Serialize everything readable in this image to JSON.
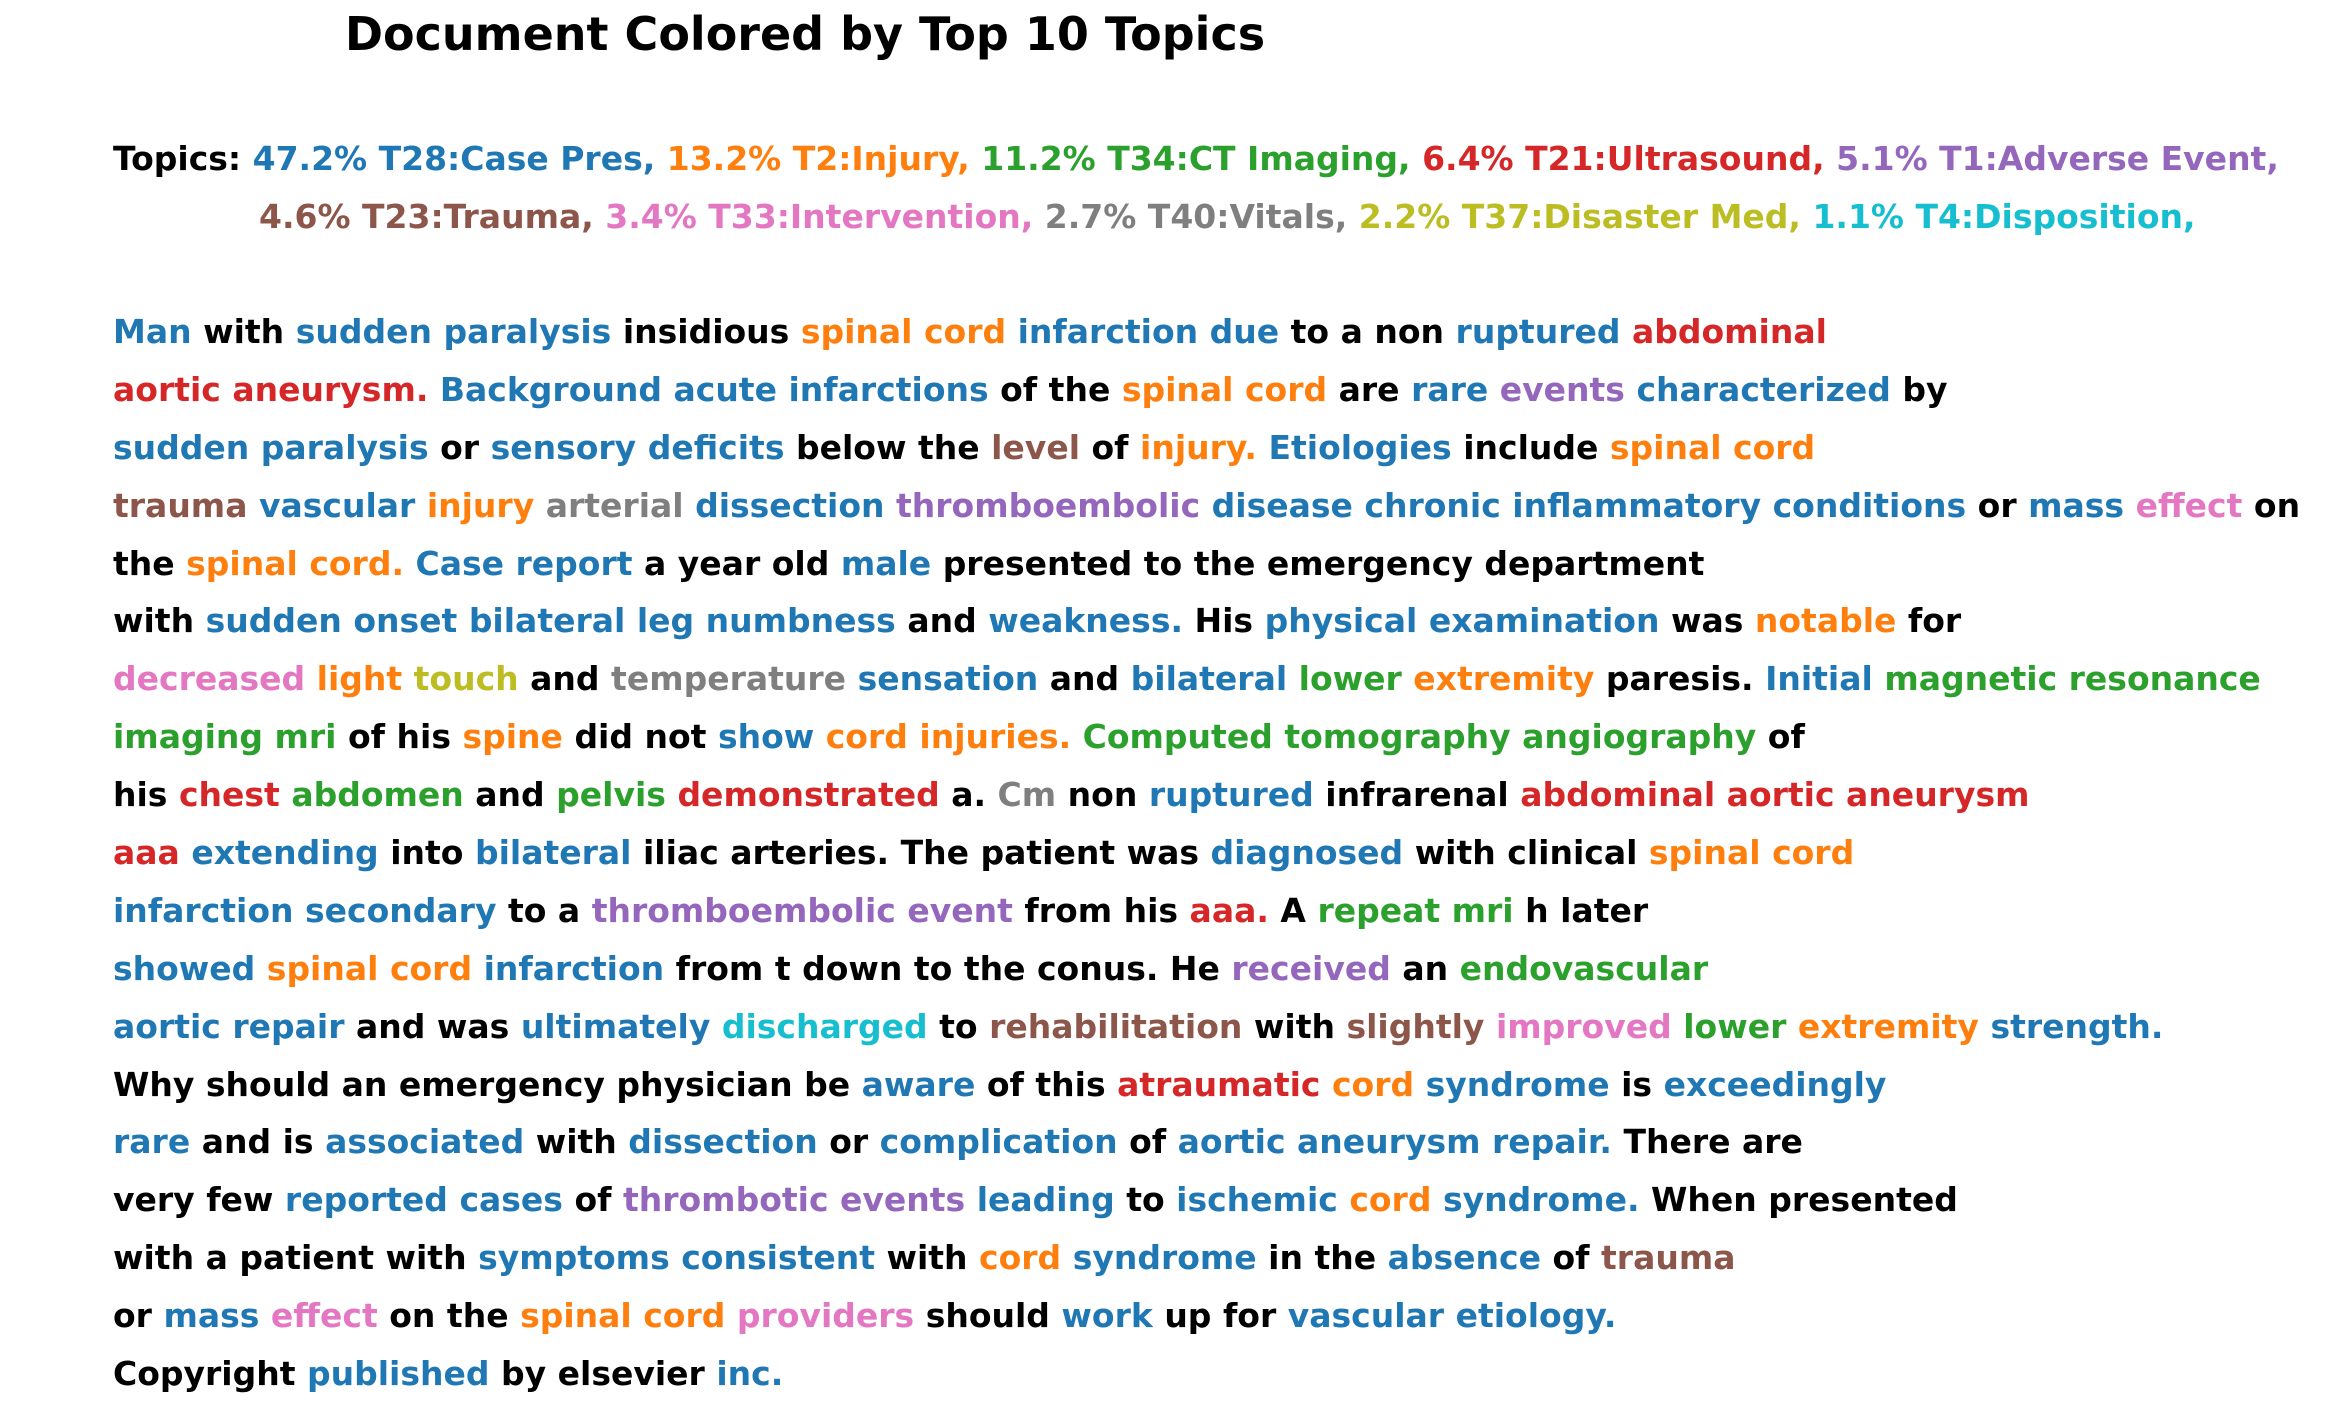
{
  "title": "Document Colored by Top 10 Topics",
  "colors": {
    "k": "#000000",
    "T28": "#1f77b4",
    "T2": "#ff7f0e",
    "T34": "#2ca02c",
    "T21": "#d62728",
    "T1": "#9467bd",
    "T23": "#8c564b",
    "T33": "#e377c2",
    "T40": "#7f7f7f",
    "T37": "#bcbd22",
    "T4": "#17becf"
  },
  "topics_legend": {
    "prefix": "Topics: ",
    "lines": [
      [
        {
          "text": "47.2% T28:Case Pres,",
          "topic": "T28"
        },
        {
          "text": "13.2% T2:Injury,",
          "topic": "T2"
        },
        {
          "text": "11.2% T34:CT Imaging,",
          "topic": "T34"
        },
        {
          "text": "6.4% T21:Ultrasound,",
          "topic": "T21"
        },
        {
          "text": "5.1% T1:Adverse Event,",
          "topic": "T1"
        }
      ],
      [
        {
          "text": "4.6% T23:Trauma,",
          "topic": "T23"
        },
        {
          "text": "3.4% T33:Intervention,",
          "topic": "T33"
        },
        {
          "text": "2.7% T40:Vitals,",
          "topic": "T40"
        },
        {
          "text": "2.2% T37:Disaster Med,",
          "topic": "T37"
        },
        {
          "text": "1.1% T4:Disposition,",
          "topic": "T4"
        }
      ]
    ]
  },
  "document_lines": [
    [
      [
        "Man",
        "T28"
      ],
      [
        "with",
        "k"
      ],
      [
        "sudden",
        "T28"
      ],
      [
        "paralysis",
        "T28"
      ],
      [
        "insidious",
        "k"
      ],
      [
        "spinal",
        "T2"
      ],
      [
        "cord",
        "T2"
      ],
      [
        "infarction",
        "T28"
      ],
      [
        "due",
        "T28"
      ],
      [
        "to",
        "k"
      ],
      [
        "a",
        "k"
      ],
      [
        "non",
        "k"
      ],
      [
        "ruptured",
        "T28"
      ],
      [
        "abdominal",
        "T21"
      ]
    ],
    [
      [
        "aortic",
        "T21"
      ],
      [
        "aneurysm.",
        "T21"
      ],
      [
        "Background",
        "T28"
      ],
      [
        "acute",
        "T28"
      ],
      [
        "infarctions",
        "T28"
      ],
      [
        "of",
        "k"
      ],
      [
        "the",
        "k"
      ],
      [
        "spinal",
        "T2"
      ],
      [
        "cord",
        "T2"
      ],
      [
        "are",
        "k"
      ],
      [
        "rare",
        "T28"
      ],
      [
        "events",
        "T1"
      ],
      [
        "characterized",
        "T28"
      ],
      [
        "by",
        "k"
      ]
    ],
    [
      [
        "sudden",
        "T28"
      ],
      [
        "paralysis",
        "T28"
      ],
      [
        "or",
        "k"
      ],
      [
        "sensory",
        "T28"
      ],
      [
        "deficits",
        "T28"
      ],
      [
        "below",
        "k"
      ],
      [
        "the",
        "k"
      ],
      [
        "level",
        "T23"
      ],
      [
        "of",
        "k"
      ],
      [
        "injury.",
        "T2"
      ],
      [
        "Etiologies",
        "T28"
      ],
      [
        "include",
        "k"
      ],
      [
        "spinal",
        "T2"
      ],
      [
        "cord",
        "T2"
      ]
    ],
    [
      [
        "trauma",
        "T23"
      ],
      [
        "vascular",
        "T28"
      ],
      [
        "injury",
        "T2"
      ],
      [
        "arterial",
        "T40"
      ],
      [
        "dissection",
        "T28"
      ],
      [
        "thromboembolic",
        "T1"
      ],
      [
        "disease",
        "T28"
      ],
      [
        "chronic",
        "T28"
      ],
      [
        "inflammatory",
        "T28"
      ],
      [
        "conditions",
        "T28"
      ],
      [
        "or",
        "k"
      ],
      [
        "mass",
        "T28"
      ],
      [
        "effect",
        "T33"
      ],
      [
        "on",
        "k"
      ]
    ],
    [
      [
        "the",
        "k"
      ],
      [
        "spinal",
        "T2"
      ],
      [
        "cord.",
        "T2"
      ],
      [
        "Case",
        "T28"
      ],
      [
        "report",
        "T28"
      ],
      [
        "a",
        "k"
      ],
      [
        "year",
        "k"
      ],
      [
        "old",
        "k"
      ],
      [
        "male",
        "T28"
      ],
      [
        "presented",
        "k"
      ],
      [
        "to",
        "k"
      ],
      [
        "the",
        "k"
      ],
      [
        "emergency",
        "k"
      ],
      [
        "department",
        "k"
      ]
    ],
    [
      [
        "with",
        "k"
      ],
      [
        "sudden",
        "T28"
      ],
      [
        "onset",
        "T28"
      ],
      [
        "bilateral",
        "T28"
      ],
      [
        "leg",
        "T28"
      ],
      [
        "numbness",
        "T28"
      ],
      [
        "and",
        "k"
      ],
      [
        "weakness.",
        "T28"
      ],
      [
        "His",
        "k"
      ],
      [
        "physical",
        "T28"
      ],
      [
        "examination",
        "T28"
      ],
      [
        "was",
        "k"
      ],
      [
        "notable",
        "T2"
      ],
      [
        "for",
        "k"
      ]
    ],
    [
      [
        "decreased",
        "T33"
      ],
      [
        "light",
        "T2"
      ],
      [
        "touch",
        "T37"
      ],
      [
        "and",
        "k"
      ],
      [
        "temperature",
        "T40"
      ],
      [
        "sensation",
        "T28"
      ],
      [
        "and",
        "k"
      ],
      [
        "bilateral",
        "T28"
      ],
      [
        "lower",
        "T34"
      ],
      [
        "extremity",
        "T2"
      ],
      [
        "paresis.",
        "k"
      ],
      [
        "Initial",
        "T28"
      ],
      [
        "magnetic",
        "T34"
      ],
      [
        "resonance",
        "T34"
      ]
    ],
    [
      [
        "imaging",
        "T34"
      ],
      [
        "mri",
        "T34"
      ],
      [
        "of",
        "k"
      ],
      [
        "his",
        "k"
      ],
      [
        "spine",
        "T2"
      ],
      [
        "did",
        "k"
      ],
      [
        "not",
        "k"
      ],
      [
        "show",
        "T28"
      ],
      [
        "cord",
        "T2"
      ],
      [
        "injuries.",
        "T2"
      ],
      [
        "Computed",
        "T34"
      ],
      [
        "tomography",
        "T34"
      ],
      [
        "angiography",
        "T34"
      ],
      [
        "of",
        "k"
      ]
    ],
    [
      [
        "his",
        "k"
      ],
      [
        "chest",
        "T21"
      ],
      [
        "abdomen",
        "T34"
      ],
      [
        "and",
        "k"
      ],
      [
        "pelvis",
        "T34"
      ],
      [
        "demonstrated",
        "T21"
      ],
      [
        "a.",
        "k"
      ],
      [
        "Cm",
        "T40"
      ],
      [
        "non",
        "k"
      ],
      [
        "ruptured",
        "T28"
      ],
      [
        "infrarenal",
        "k"
      ],
      [
        "abdominal",
        "T21"
      ],
      [
        "aortic",
        "T21"
      ],
      [
        "aneurysm",
        "T21"
      ]
    ],
    [
      [
        "aaa",
        "T21"
      ],
      [
        "extending",
        "T28"
      ],
      [
        "into",
        "k"
      ],
      [
        "bilateral",
        "T28"
      ],
      [
        "iliac",
        "k"
      ],
      [
        "arteries.",
        "k"
      ],
      [
        "The",
        "k"
      ],
      [
        "patient",
        "k"
      ],
      [
        "was",
        "k"
      ],
      [
        "diagnosed",
        "T28"
      ],
      [
        "with",
        "k"
      ],
      [
        "clinical",
        "k"
      ],
      [
        "spinal",
        "T2"
      ],
      [
        "cord",
        "T2"
      ]
    ],
    [
      [
        "infarction",
        "T28"
      ],
      [
        "secondary",
        "T28"
      ],
      [
        "to",
        "k"
      ],
      [
        "a",
        "k"
      ],
      [
        "thromboembolic",
        "T1"
      ],
      [
        "event",
        "T1"
      ],
      [
        "from",
        "k"
      ],
      [
        "his",
        "k"
      ],
      [
        "aaa.",
        "T21"
      ],
      [
        "A",
        "k"
      ],
      [
        "repeat",
        "T34"
      ],
      [
        "mri",
        "T34"
      ],
      [
        "h",
        "k"
      ],
      [
        "later",
        "k"
      ]
    ],
    [
      [
        "showed",
        "T28"
      ],
      [
        "spinal",
        "T2"
      ],
      [
        "cord",
        "T2"
      ],
      [
        "infarction",
        "T28"
      ],
      [
        "from",
        "k"
      ],
      [
        "t",
        "k"
      ],
      [
        "down",
        "k"
      ],
      [
        "to",
        "k"
      ],
      [
        "the",
        "k"
      ],
      [
        "conus.",
        "k"
      ],
      [
        "He",
        "k"
      ],
      [
        "received",
        "T1"
      ],
      [
        "an",
        "k"
      ],
      [
        "endovascular",
        "T34"
      ]
    ],
    [
      [
        "aortic",
        "T28"
      ],
      [
        "repair",
        "T28"
      ],
      [
        "and",
        "k"
      ],
      [
        "was",
        "k"
      ],
      [
        "ultimately",
        "T28"
      ],
      [
        "discharged",
        "T4"
      ],
      [
        "to",
        "k"
      ],
      [
        "rehabilitation",
        "T23"
      ],
      [
        "with",
        "k"
      ],
      [
        "slightly",
        "T23"
      ],
      [
        "improved",
        "T33"
      ],
      [
        "lower",
        "T34"
      ],
      [
        "extremity",
        "T2"
      ],
      [
        "strength.",
        "T28"
      ]
    ],
    [
      [
        "Why",
        "k"
      ],
      [
        "should",
        "k"
      ],
      [
        "an",
        "k"
      ],
      [
        "emergency",
        "k"
      ],
      [
        "physician",
        "k"
      ],
      [
        "be",
        "k"
      ],
      [
        "aware",
        "T28"
      ],
      [
        "of",
        "k"
      ],
      [
        "this",
        "k"
      ],
      [
        "atraumatic",
        "T21"
      ],
      [
        "cord",
        "T2"
      ],
      [
        "syndrome",
        "T28"
      ],
      [
        "is",
        "k"
      ],
      [
        "exceedingly",
        "T28"
      ]
    ],
    [
      [
        "rare",
        "T28"
      ],
      [
        "and",
        "k"
      ],
      [
        "is",
        "k"
      ],
      [
        "associated",
        "T28"
      ],
      [
        "with",
        "k"
      ],
      [
        "dissection",
        "T28"
      ],
      [
        "or",
        "k"
      ],
      [
        "complication",
        "T28"
      ],
      [
        "of",
        "k"
      ],
      [
        "aortic",
        "T28"
      ],
      [
        "aneurysm",
        "T28"
      ],
      [
        "repair.",
        "T28"
      ],
      [
        "There",
        "k"
      ],
      [
        "are",
        "k"
      ]
    ],
    [
      [
        "very",
        "k"
      ],
      [
        "few",
        "k"
      ],
      [
        "reported",
        "T28"
      ],
      [
        "cases",
        "T28"
      ],
      [
        "of",
        "k"
      ],
      [
        "thrombotic",
        "T1"
      ],
      [
        "events",
        "T1"
      ],
      [
        "leading",
        "T28"
      ],
      [
        "to",
        "k"
      ],
      [
        "ischemic",
        "T28"
      ],
      [
        "cord",
        "T2"
      ],
      [
        "syndrome.",
        "T28"
      ],
      [
        "When",
        "k"
      ],
      [
        "presented",
        "k"
      ]
    ],
    [
      [
        "with",
        "k"
      ],
      [
        "a",
        "k"
      ],
      [
        "patient",
        "k"
      ],
      [
        "with",
        "k"
      ],
      [
        "symptoms",
        "T28"
      ],
      [
        "consistent",
        "T28"
      ],
      [
        "with",
        "k"
      ],
      [
        "cord",
        "T2"
      ],
      [
        "syndrome",
        "T28"
      ],
      [
        "in",
        "k"
      ],
      [
        "the",
        "k"
      ],
      [
        "absence",
        "T28"
      ],
      [
        "of",
        "k"
      ],
      [
        "trauma",
        "T23"
      ]
    ],
    [
      [
        "or",
        "k"
      ],
      [
        "mass",
        "T28"
      ],
      [
        "effect",
        "T33"
      ],
      [
        "on",
        "k"
      ],
      [
        "the",
        "k"
      ],
      [
        "spinal",
        "T2"
      ],
      [
        "cord",
        "T2"
      ],
      [
        "providers",
        "T33"
      ],
      [
        "should",
        "k"
      ],
      [
        "work",
        "T28"
      ],
      [
        "up",
        "k"
      ],
      [
        "for",
        "k"
      ],
      [
        "vascular",
        "T28"
      ],
      [
        "etiology.",
        "T28"
      ]
    ],
    [
      [
        "Copyright",
        "k"
      ],
      [
        "published",
        "T28"
      ],
      [
        "by",
        "k"
      ],
      [
        "elsevier",
        "k"
      ],
      [
        "inc.",
        "T28"
      ]
    ]
  ]
}
